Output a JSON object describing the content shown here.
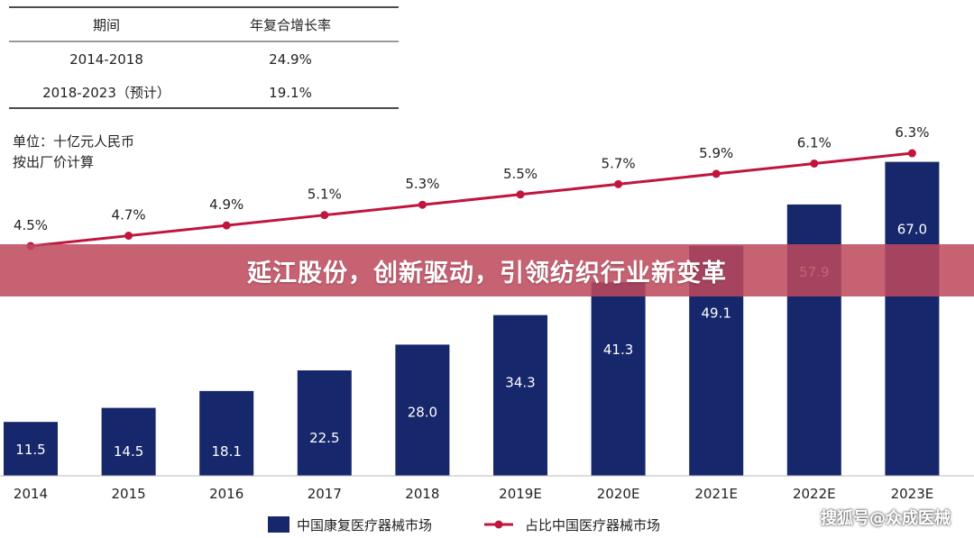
{
  "cagr_table": {
    "headers": [
      "期间",
      "年复合增长率"
    ],
    "rows": [
      [
        "2014-2018",
        "24.9%"
      ],
      [
        "2018-2023（预计）",
        "19.1%"
      ]
    ]
  },
  "unit_note": [
    "单位：十亿元人民币",
    "按出厂价计算"
  ],
  "banner_title": "延江股份，创新驱动，引领纺织行业新变革",
  "watermark": "搜狐号@众成医械",
  "chart_data": {
    "type": "bar+line",
    "categories": [
      "2014",
      "2015",
      "2016",
      "2017",
      "2018",
      "2019E",
      "2020E",
      "2021E",
      "2022E",
      "2023E"
    ],
    "series": [
      {
        "name": "中国康复医疗器械市场",
        "type": "bar",
        "color": "#17276b",
        "values": [
          11.5,
          14.5,
          18.1,
          22.5,
          28.0,
          34.3,
          41.3,
          49.1,
          57.9,
          67.0
        ],
        "labels": [
          "11.5",
          "14.5",
          "18.1",
          "22.5",
          "28.0",
          "34.3",
          "41.3",
          "49.1",
          "57.9",
          "67.0"
        ]
      },
      {
        "name": "占比中国医疗器械市场",
        "type": "line",
        "color": "#c0163e",
        "values": [
          4.5,
          4.7,
          4.9,
          5.1,
          5.3,
          5.5,
          5.7,
          5.9,
          6.1,
          6.3
        ],
        "labels": [
          "4.5%",
          "4.7%",
          "4.9%",
          "5.1%",
          "5.3%",
          "5.5%",
          "5.7%",
          "5.9%",
          "6.1%",
          "6.3%"
        ]
      }
    ],
    "legend_position": "bottom",
    "grid": false
  }
}
